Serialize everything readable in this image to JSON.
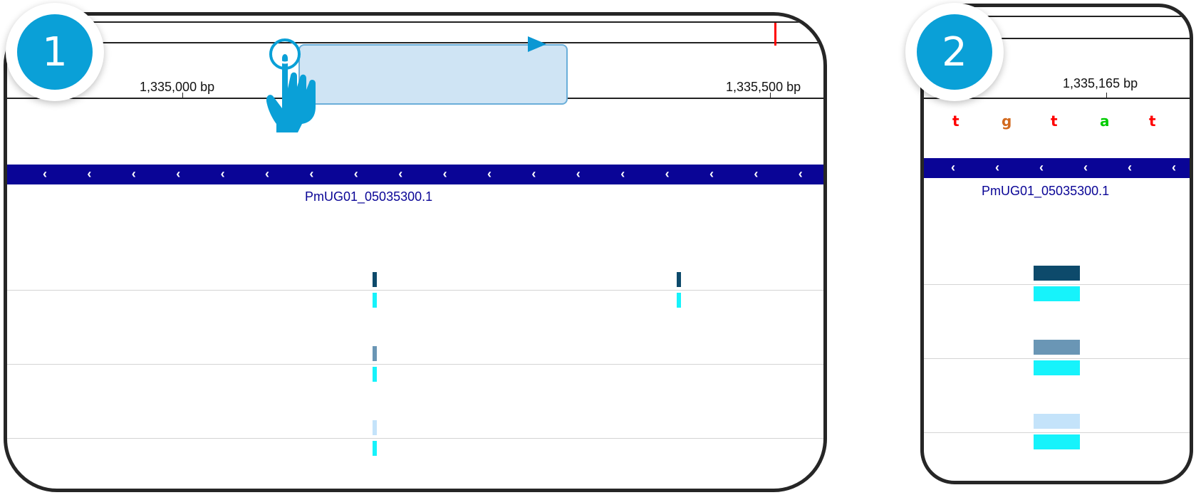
{
  "panel1": {
    "step_number": "1",
    "ruler": {
      "left_label": "1,335,000 bp",
      "right_label": "1,335,500 bp"
    },
    "gene_name": "PmUG01_05035300.1",
    "gene_strand_glyph": "‹"
  },
  "panel2": {
    "step_number": "2",
    "ruler": {
      "label": "1,335,165 bp"
    },
    "sequence": [
      {
        "base": "t",
        "color": "#ff0000"
      },
      {
        "base": "g",
        "color": "#d2691e"
      },
      {
        "base": "t",
        "color": "#ff0000"
      },
      {
        "base": "a",
        "color": "#00cc00"
      },
      {
        "base": "t",
        "color": "#ff0000"
      }
    ],
    "gene_name": "PmUG01_05035300.1",
    "gene_strand_glyph": "‹"
  },
  "colors": {
    "gene": "#0a0596",
    "badge": "#0aa0d7",
    "hand": "#0aa0d7",
    "drag_region": "#cfe4f4",
    "variant_dark": "#0d4a6b",
    "variant_mid": "#6a96b5",
    "variant_light": "#c4e3fa",
    "variant_cyan": "#16f3fb",
    "position_marker": "#ff0000"
  },
  "icons": {
    "pointer": "pointing-hand-icon",
    "drag_direction": "arrow-right-icon"
  }
}
